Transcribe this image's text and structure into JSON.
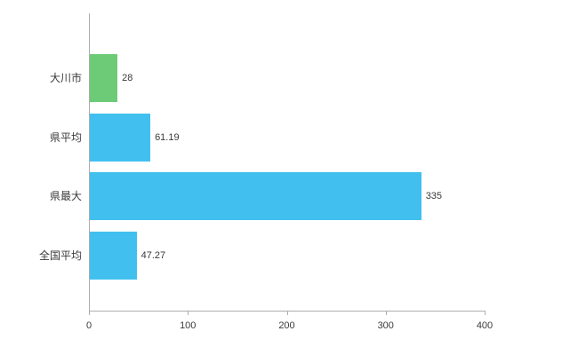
{
  "chart_data": {
    "type": "bar",
    "orientation": "horizontal",
    "title": "",
    "xlabel": "",
    "ylabel": "",
    "categories": [
      "大川市",
      "県平均",
      "県最大",
      "全国平均"
    ],
    "values": [
      28,
      61.19,
      335,
      47.27
    ],
    "value_labels": [
      "28",
      "61.19",
      "335",
      "47.27"
    ],
    "bar_colors": [
      "#6dcb77",
      "#41c0f0",
      "#41c0f0",
      "#41c0f0"
    ],
    "x_ticks": [
      "0",
      "100",
      "200",
      "300",
      "400"
    ],
    "xlim": [
      0,
      400
    ],
    "grid": false,
    "legend": false,
    "axis_color": "#adadad",
    "label_color": "#3a3a3a",
    "background_color": "#ffffff"
  }
}
